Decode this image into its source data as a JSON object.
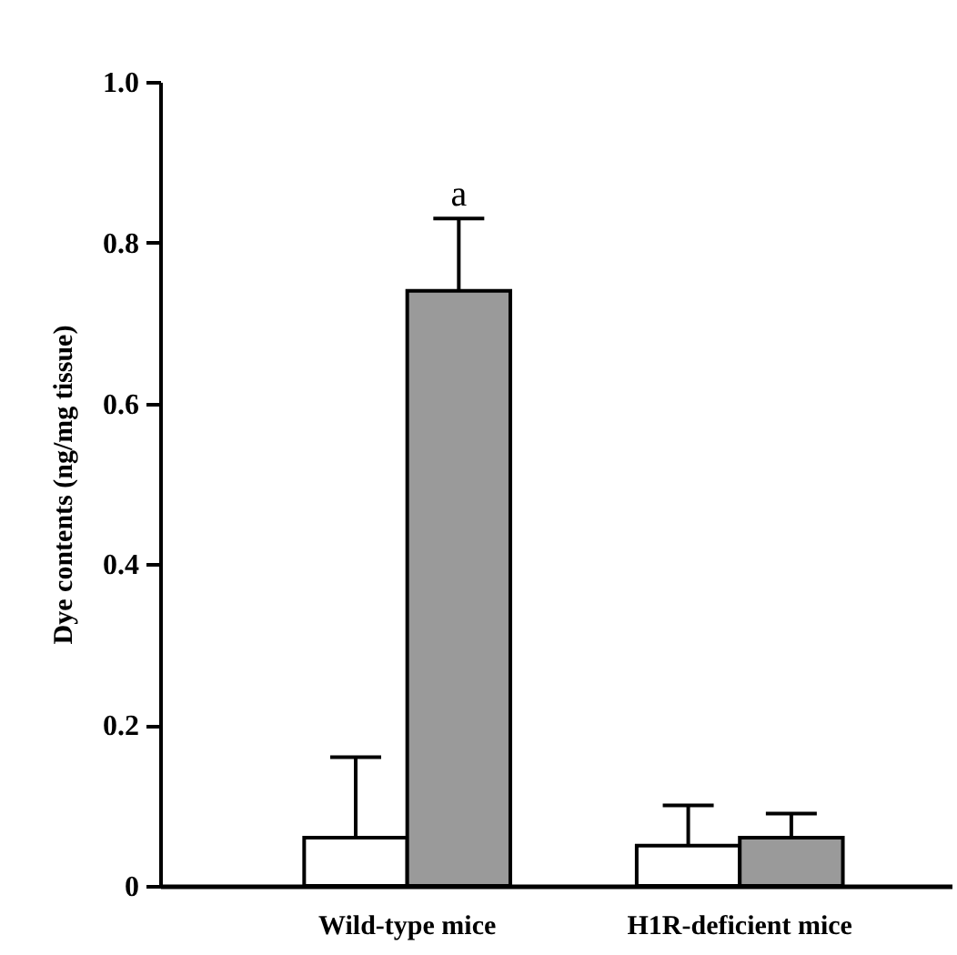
{
  "chart_data": {
    "type": "bar",
    "ylabel": "Dye contents (ng/mg tissue)",
    "categories": [
      "Wild-type mice",
      "H1R-deficient mice"
    ],
    "series": [
      {
        "color": "#ffffff",
        "values": [
          0.06,
          0.05
        ],
        "errors": [
          [
            0.06,
            0.16
          ],
          [
            0.05,
            0.1
          ]
        ]
      },
      {
        "color": "#9a9a9a",
        "values": [
          0.74,
          0.06
        ],
        "errors": [
          [
            0.74,
            0.83
          ],
          [
            0.06,
            0.09
          ]
        ]
      }
    ],
    "ylim": [
      0,
      1.0
    ],
    "yticks": [
      0,
      0.2,
      0.4,
      0.6,
      0.8,
      {
        "value": 1.0,
        "label": "1.0"
      }
    ],
    "annotations": [
      "a"
    ]
  }
}
